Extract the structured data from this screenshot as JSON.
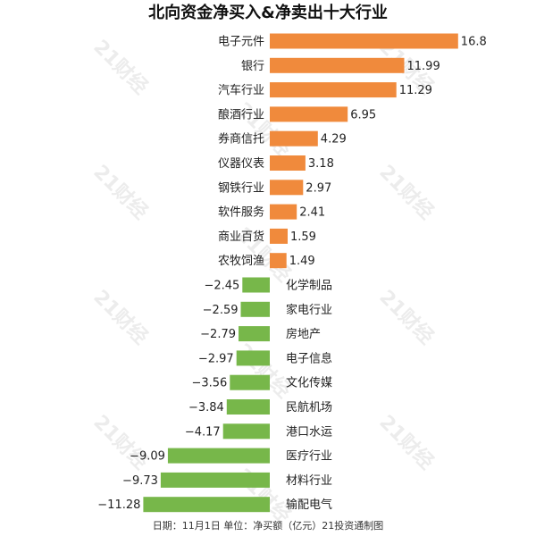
{
  "chart_data": {
    "type": "bar",
    "orientation": "horizontal",
    "title": "北向资金净买入&净卖出十大行业",
    "categories": [
      "电子元件",
      "银行",
      "汽车行业",
      "酿酒行业",
      "券商信托",
      "仪器仪表",
      "钢铁行业",
      "软件服务",
      "商业百货",
      "农牧饲渔",
      "化学制品",
      "家电行业",
      "房地产",
      "电子信息",
      "文化传媒",
      "民航机场",
      "港口水运",
      "医疗行业",
      "材料行业",
      "输配电气"
    ],
    "values": [
      16.8,
      11.99,
      11.29,
      6.95,
      4.29,
      3.18,
      2.97,
      2.41,
      1.59,
      1.49,
      -2.45,
      -2.59,
      -2.79,
      -2.97,
      -3.56,
      -3.84,
      -4.17,
      -9.09,
      -9.73,
      -11.28
    ],
    "value_labels": [
      "16.8",
      "11.99",
      "11.29",
      "6.95",
      "4.29",
      "3.18",
      "2.97",
      "2.41",
      "1.59",
      "1.49",
      "−2.45",
      "−2.59",
      "−2.79",
      "−2.97",
      "−3.56",
      "−3.84",
      "−4.17",
      "−9.09",
      "−9.73",
      "−11.28"
    ],
    "xlim": [
      -11.28,
      16.8
    ],
    "grid": false,
    "legend": "none",
    "colors": {
      "positive": "#f08a3c",
      "negative": "#77b74a"
    }
  },
  "footer": "日期：11月1日  单位：净买额（亿元）21投资通制图",
  "watermark": "21财经"
}
